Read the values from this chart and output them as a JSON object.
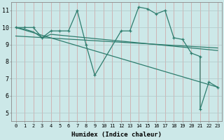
{
  "xlabel": "Humidex (Indice chaleur)",
  "xlim": [
    -0.5,
    23.5
  ],
  "ylim": [
    4.5,
    11.5
  ],
  "xticks": [
    0,
    1,
    2,
    3,
    4,
    5,
    6,
    7,
    8,
    9,
    10,
    11,
    12,
    13,
    14,
    15,
    16,
    17,
    18,
    19,
    20,
    21,
    22,
    23
  ],
  "yticks": [
    5,
    6,
    7,
    8,
    9,
    10,
    11
  ],
  "bg_color": "#cce8e8",
  "grid_color": "#b0c8c8",
  "line_color": "#2e7d6e",
  "line1_x": [
    0,
    1,
    2,
    3,
    4,
    5,
    6,
    7,
    8,
    9,
    12,
    13,
    14,
    15,
    16,
    17,
    18,
    19,
    20,
    21,
    21,
    22,
    23
  ],
  "line1_y": [
    10.0,
    10.0,
    10.0,
    9.4,
    9.8,
    9.8,
    9.8,
    11.0,
    9.0,
    7.2,
    9.8,
    9.8,
    11.2,
    11.1,
    10.8,
    11.0,
    9.4,
    9.3,
    8.5,
    8.3,
    5.2,
    6.8,
    6.5
  ],
  "line2_x": [
    0,
    1,
    2,
    3,
    4,
    5,
    6,
    7,
    8,
    9,
    10,
    11,
    12,
    13,
    14,
    15,
    16,
    17,
    18,
    19,
    20,
    21,
    22,
    23
  ],
  "line2_y": [
    10.0,
    9.9,
    9.75,
    9.4,
    9.6,
    9.55,
    9.5,
    9.45,
    9.4,
    9.35,
    9.3,
    9.25,
    9.2,
    9.15,
    9.1,
    9.05,
    9.0,
    8.95,
    8.9,
    8.85,
    8.8,
    8.75,
    8.7,
    8.65
  ],
  "line3_x": [
    0,
    23
  ],
  "line3_y": [
    10.0,
    6.5
  ],
  "line4_x": [
    0,
    23
  ],
  "line4_y": [
    9.5,
    8.8
  ]
}
